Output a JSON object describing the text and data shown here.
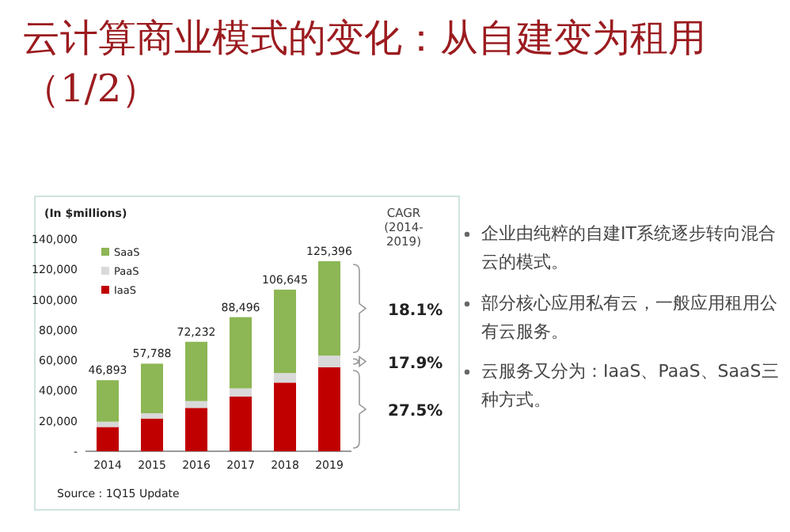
{
  "chart_data": {
    "type": "bar",
    "stacked": true,
    "title": "云计算商业模式的变化：从自建变为租用（1/2）",
    "ylabel": "(In $millions)",
    "categories": [
      "2014",
      "2015",
      "2016",
      "2017",
      "2018",
      "2019"
    ],
    "series": [
      {
        "name": "IaaS",
        "color": "#c00000",
        "values": [
          16000,
          21600,
          28600,
          36200,
          45300,
          55400
        ]
      },
      {
        "name": "PaaS",
        "color": "#d9d9d9",
        "values": [
          3500,
          3500,
          4500,
          5300,
          6300,
          7700
        ]
      },
      {
        "name": "SaaS",
        "color": "#8db654",
        "values": [
          27393,
          32688,
          39132,
          46996,
          55045,
          62296
        ]
      }
    ],
    "totals": [
      "46,893",
      "57,788",
      "72,232",
      "88,496",
      "106,645",
      "125,396"
    ],
    "ylim": [
      0,
      140000
    ],
    "yticks": [
      {
        "value": 0,
        "label": "-"
      },
      {
        "value": 20000,
        "label": "20,000"
      },
      {
        "value": 40000,
        "label": "40,000"
      },
      {
        "value": 60000,
        "label": "60,000"
      },
      {
        "value": 80000,
        "label": "80,000"
      },
      {
        "value": 100000,
        "label": "100,000"
      },
      {
        "value": 120000,
        "label": "120,000"
      },
      {
        "value": 140000,
        "label": "140,000"
      }
    ],
    "legend": "top left",
    "annotations": [
      "CAGR (2014-2019)",
      "27.5%",
      "17.9%",
      "18.1%",
      "Source : 1Q15 Update",
      "企业由纯粹的自建IT系统逐步转向混合云的模式。",
      "部分核心应用私有云，一般应用租用公有云服务。",
      "云服务又分为：IaaS、PaaS、SaaS三种方式。"
    ]
  }
}
